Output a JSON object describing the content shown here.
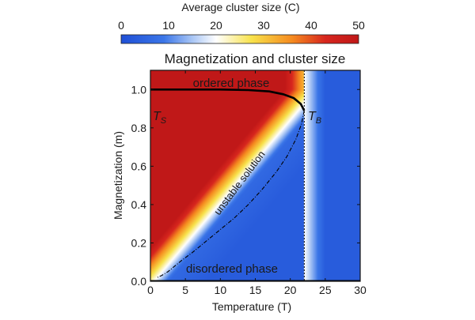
{
  "colorbar": {
    "title": "Average cluster size (C)",
    "ticks": [
      0,
      10,
      20,
      30,
      40,
      50
    ],
    "range": [
      0,
      50
    ],
    "colors": [
      "#1f4fd6",
      "#3b76e8",
      "#a9c6f5",
      "#ffffff",
      "#f8e24a",
      "#f58a1f",
      "#d7261e",
      "#c01818"
    ]
  },
  "chart_data": {
    "type": "heatmap",
    "title": "Magnetization and cluster size",
    "xlabel": "Temperature (T)",
    "ylabel": "Magnetization (m)",
    "xlim": [
      0,
      30
    ],
    "ylim": [
      0,
      1.1
    ],
    "xticks": [
      0,
      5,
      10,
      15,
      20,
      25,
      30
    ],
    "yticks": [
      "0.0",
      "0.2",
      "0.4",
      "0.6",
      "0.8",
      "1.0"
    ],
    "critical_temperature": 22,
    "series": [
      {
        "kind": "ordered-branch",
        "x": [
          0,
          5,
          10,
          14,
          17,
          19,
          20.5,
          21.5,
          22
        ],
        "y": [
          1.0,
          1.0,
          1.0,
          0.997,
          0.99,
          0.975,
          0.955,
          0.925,
          0.89
        ]
      },
      {
        "kind": "unstable-branch",
        "x": [
          22,
          21.6,
          20.8,
          19.5,
          18,
          16,
          14,
          12,
          10,
          8,
          6,
          4.5,
          3.5,
          2.5,
          1.6,
          1.0
        ],
        "y": [
          0.89,
          0.82,
          0.74,
          0.65,
          0.57,
          0.48,
          0.4,
          0.33,
          0.27,
          0.21,
          0.15,
          0.11,
          0.08,
          0.05,
          0.03,
          0.02
        ]
      },
      {
        "kind": "disordered-branch",
        "x": [
          0,
          30
        ],
        "y": [
          0.0,
          0.0
        ]
      }
    ],
    "annotations": {
      "ordered": "ordered phase",
      "disordered": "disordered phase",
      "unstable": "unstable solution",
      "ts_main": "T",
      "ts_sub": "S",
      "tb_main": "T",
      "tb_sub": "B"
    }
  }
}
